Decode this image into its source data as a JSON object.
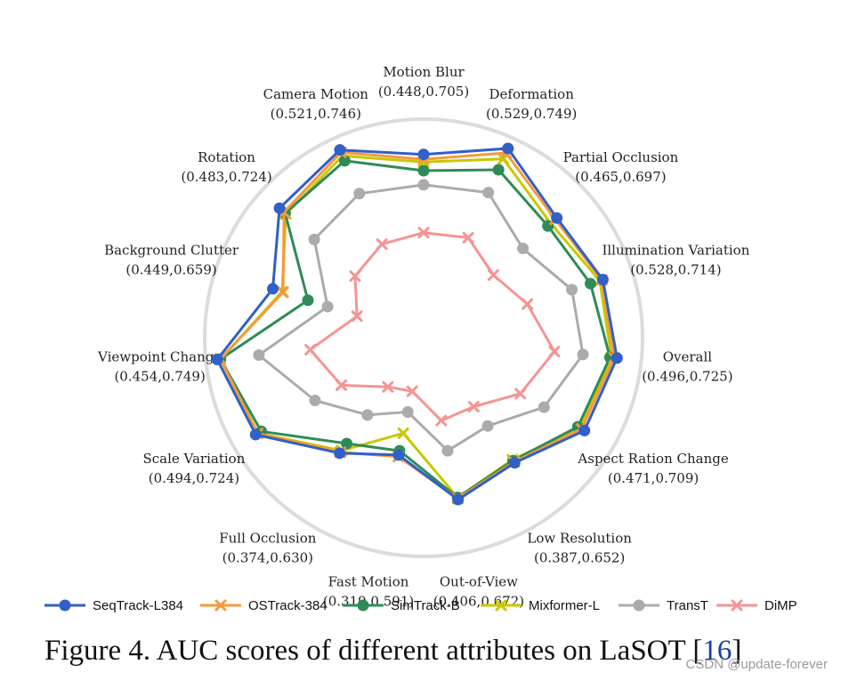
{
  "chart_data": {
    "type": "radar",
    "title": "",
    "range_note": "each axis label shows (min,max) AUC of that attribute",
    "axes": [
      {
        "name": "Motion Blur",
        "range": "(0.448,0.705)"
      },
      {
        "name": "Deformation",
        "range": "(0.529,0.749)"
      },
      {
        "name": "Partial Occlusion",
        "range": "(0.465,0.697)"
      },
      {
        "name": "Illumination Variation",
        "range": "(0.528,0.714)"
      },
      {
        "name": "Overall",
        "range": "(0.496,0.725)"
      },
      {
        "name": "Aspect Ration Change",
        "range": "(0.471,0.709)"
      },
      {
        "name": "Low Resolution",
        "range": "(0.387,0.652)"
      },
      {
        "name": "Out-of-View",
        "range": "(0.406,0.672)"
      },
      {
        "name": "Fast Motion",
        "range": "(0.319,0.591)"
      },
      {
        "name": "Full Occlusion",
        "range": "(0.374,0.630)"
      },
      {
        "name": "Scale Variation",
        "range": "(0.494,0.724)"
      },
      {
        "name": "Viewpoint Change",
        "range": "(0.454,0.749)"
      },
      {
        "name": "Background Clutter",
        "range": "(0.449,0.659)"
      },
      {
        "name": "Rotation",
        "range": "(0.483,0.724)"
      },
      {
        "name": "Camera Motion",
        "range": "(0.521,0.746)"
      }
    ],
    "series": [
      {
        "name": "SeqTrack-L384",
        "color": "#3060c8",
        "marker": "circle",
        "values": [
          0.705,
          0.749,
          0.697,
          0.714,
          0.725,
          0.709,
          0.652,
          0.672,
          0.588,
          0.63,
          0.724,
          0.749,
          0.659,
          0.724,
          0.746
        ]
      },
      {
        "name": "OSTrack-384",
        "color": "#f59a3c",
        "marker": "x",
        "values": [
          0.696,
          0.74,
          0.693,
          0.712,
          0.72,
          0.703,
          0.65,
          0.67,
          0.591,
          0.628,
          0.72,
          0.743,
          0.639,
          0.713,
          0.741
        ]
      },
      {
        "name": "SimTrack-B",
        "color": "#2e8b57",
        "marker": "circle",
        "values": [
          0.675,
          0.706,
          0.675,
          0.69,
          0.712,
          0.695,
          0.647,
          0.668,
          0.58,
          0.608,
          0.712,
          0.743,
          0.591,
          0.71,
          0.724
        ]
      },
      {
        "name": "Mixformer-L",
        "color": "#c8c800",
        "marker": "x",
        "values": [
          0.691,
          0.728,
          0.682,
          0.708,
          0.715,
          0.7,
          0.645,
          0.668,
          0.547,
          0.624,
          0.719,
          0.743,
          0.641,
          0.708,
          0.734
        ]
      },
      {
        "name": "TransT",
        "color": "#ababab",
        "marker": "circle",
        "values": [
          0.649,
          0.66,
          0.613,
          0.654,
          0.662,
          0.623,
          0.568,
          0.58,
          0.507,
          0.543,
          0.598,
          0.672,
          0.553,
          0.638,
          0.658
        ]
      },
      {
        "name": "DiMP",
        "color": "#f59494",
        "marker": "x",
        "values": [
          0.561,
          0.569,
          0.54,
          0.568,
          0.609,
          0.573,
          0.524,
          0.523,
          0.468,
          0.479,
          0.542,
          0.577,
          0.496,
          0.537,
          0.556
        ]
      }
    ],
    "legend_position": "bottom"
  },
  "caption": {
    "text": "Figure 4. AUC scores of different attributes on LaSOT [",
    "ref": "16",
    "close": "]"
  },
  "watermark": "CSDN @update-forever"
}
